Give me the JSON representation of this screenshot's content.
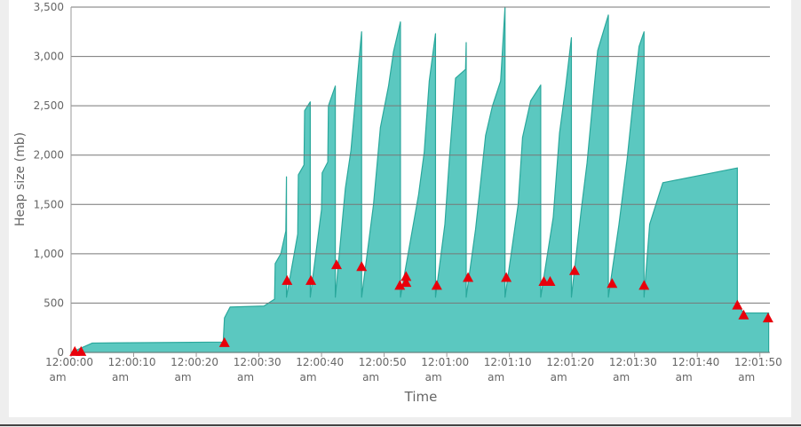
{
  "chart_data": {
    "type": "area",
    "xlabel": "Time",
    "ylabel": "Heap size (mb)",
    "xlim": [
      0,
      111.6
    ],
    "ylim": [
      0,
      3500
    ],
    "grid": true,
    "xticks": [
      {
        "value": 0,
        "label": "12:00:00 am"
      },
      {
        "value": 10,
        "label": "12:00:10 am"
      },
      {
        "value": 20,
        "label": "12:00:20 am"
      },
      {
        "value": 30,
        "label": "12:00:30 am"
      },
      {
        "value": 40,
        "label": "12:00:40 am"
      },
      {
        "value": 50,
        "label": "12:00:50 am"
      },
      {
        "value": 60,
        "label": "12:01:00 am"
      },
      {
        "value": 70,
        "label": "12:01:10 am"
      },
      {
        "value": 80,
        "label": "12:01:20 am"
      },
      {
        "value": 90,
        "label": "12:01:30 am"
      },
      {
        "value": 100,
        "label": "12:01:40 am"
      },
      {
        "value": 110,
        "label": "12:01:50 am"
      }
    ],
    "yticks": [
      0,
      500,
      {
        "value": 1000,
        "label": "1,000"
      },
      {
        "value": 1500,
        "label": "1,500"
      },
      {
        "value": 2000,
        "label": "2,000"
      },
      {
        "value": 2500,
        "label": "2,500"
      },
      {
        "value": 3000,
        "label": "3,000"
      },
      {
        "value": 3500,
        "label": "3,500"
      }
    ],
    "series": [
      {
        "type": "area",
        "color": "#2aa89c",
        "fill": "#5bc8c0",
        "x": [
          0,
          3.4,
          24.3,
          24.5,
          25.4,
          30.8,
          32.5,
          32.6,
          33.5,
          34.3,
          34.4,
          34.4,
          36.2,
          36.3,
          37.2,
          37.3,
          38.2,
          38.2,
          40.0,
          40.1,
          41.0,
          41.1,
          42.2,
          42.2,
          43.8,
          44.7,
          45.6,
          46.4,
          46.4,
          48.3,
          49.4,
          50.7,
          51.5,
          52.6,
          52.6,
          55.5,
          56.4,
          57.2,
          58.2,
          58.2,
          59.7,
          60.4,
          61.4,
          63.0,
          63.1,
          63.1,
          64.6,
          65.2,
          66.2,
          67.3,
          68.6,
          69.3,
          69.3,
          71.4,
          72.1,
          73.4,
          75.0,
          75.0,
          77.0,
          78.0,
          79.0,
          79.9,
          79.9,
          81.5,
          82.4,
          83.4,
          84.1,
          85.8,
          85.8,
          87.5,
          88.8,
          89.6,
          90.7,
          91.5,
          91.5,
          92.4,
          94.5,
          106.4,
          106.4,
          107.4,
          111.4
        ],
        "values": [
          0,
          95,
          105,
          350,
          460,
          470,
          540,
          900,
          1000,
          1230,
          1780,
          560,
          1200,
          1800,
          1900,
          2450,
          2540,
          560,
          1450,
          1820,
          1930,
          2500,
          2700,
          560,
          1660,
          2050,
          2700,
          3250,
          560,
          1500,
          2280,
          2700,
          3050,
          3350,
          560,
          1600,
          2030,
          2750,
          3230,
          560,
          1300,
          1950,
          2780,
          2870,
          3140,
          560,
          1250,
          1600,
          2200,
          2500,
          2750,
          3500,
          560,
          1500,
          2180,
          2550,
          2710,
          560,
          1370,
          2220,
          2700,
          3190,
          560,
          1460,
          1920,
          2600,
          3060,
          3420,
          560,
          1300,
          1960,
          2450,
          3100,
          3250,
          560,
          1300,
          1720,
          1870,
          480,
          400,
          400
        ]
      },
      {
        "type": "scatter",
        "marker": "triangle",
        "color": "#e8000b",
        "x": [
          0.6,
          1.6,
          24.5,
          34.5,
          38.3,
          42.4,
          46.4,
          52.5,
          53.5,
          53.5,
          58.4,
          63.4,
          69.5,
          75.5,
          76.5,
          80.4,
          86.4,
          91.5,
          106.4,
          107.4,
          111.3
        ],
        "values": [
          10,
          10,
          100,
          730,
          730,
          890,
          870,
          680,
          770,
          710,
          680,
          760,
          760,
          720,
          720,
          830,
          700,
          680,
          480,
          380,
          350
        ]
      }
    ]
  }
}
